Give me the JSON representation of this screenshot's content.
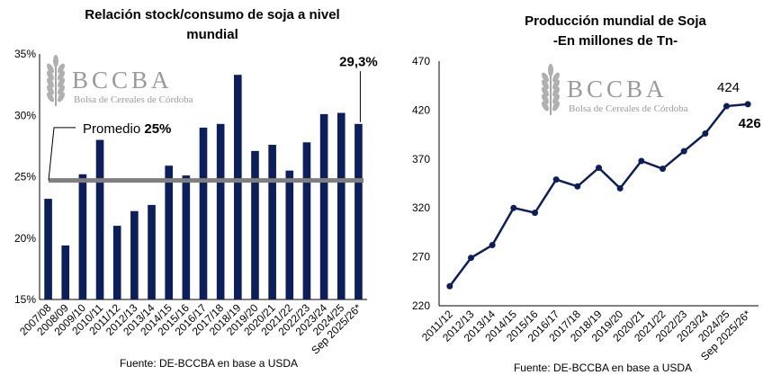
{
  "logo": {
    "main": "BCCBA",
    "sub": "Bolsa de Cereales de Córdoba"
  },
  "charts": [
    {
      "title_line1": "Relación stock/consumo de soja a nivel",
      "title_line2": "mundial",
      "source": "Fuente: DE-BCCBA en base a USDA",
      "avg_label": "Promedio ",
      "avg_value_label": "25%",
      "last_label": "29,3%"
    },
    {
      "title_line1": "Producción mundial de Soja",
      "title_line2": "-En millones de Tn-",
      "source": "Fuente: DE-BCCBA en base a USDA",
      "label_prev": "424",
      "label_last": "426"
    }
  ],
  "chart_data": [
    {
      "type": "bar",
      "title": "Relación stock/consumo de soja a nivel mundial",
      "categories": [
        "2007/08",
        "2008/09",
        "2009/10",
        "2010/11",
        "2011/12",
        "2012/13",
        "2013/14",
        "2014/15",
        "2015/16",
        "2016/17",
        "2017/18",
        "2018/19",
        "2019/20",
        "2020/21",
        "2021/22",
        "2022/23",
        "2023/24",
        "2024/25",
        "Sep 2025/26*"
      ],
      "values": [
        23.2,
        19.4,
        25.2,
        28.0,
        21.0,
        22.2,
        22.7,
        25.9,
        25.1,
        29.0,
        29.3,
        33.3,
        27.1,
        27.6,
        25.5,
        27.8,
        30.1,
        30.2,
        29.3
      ],
      "ylim": [
        15,
        35
      ],
      "yticks": [
        "15%",
        "20%",
        "25%",
        "30%",
        "35%"
      ],
      "average": 24.7,
      "bar_color": "#0c1f5c",
      "avg_color": "#7f7f7f"
    },
    {
      "type": "line",
      "title": "Producción mundial de Soja -En millones de Tn-",
      "categories": [
        "2011/12",
        "2012/13",
        "2013/14",
        "2014/15",
        "2015/16",
        "2016/17",
        "2017/18",
        "2018/19",
        "2019/20",
        "2020/21",
        "2021/22",
        "2022/23",
        "2023/24",
        "2024/25",
        "Sep 2025/26*"
      ],
      "values": [
        240,
        269,
        282,
        320,
        315,
        349,
        342,
        361,
        340,
        368,
        360,
        378,
        396,
        424,
        426
      ],
      "ylim": [
        220,
        470
      ],
      "yticks": [
        "220",
        "270",
        "320",
        "370",
        "420",
        "470"
      ],
      "line_color": "#0c1f5c"
    }
  ]
}
